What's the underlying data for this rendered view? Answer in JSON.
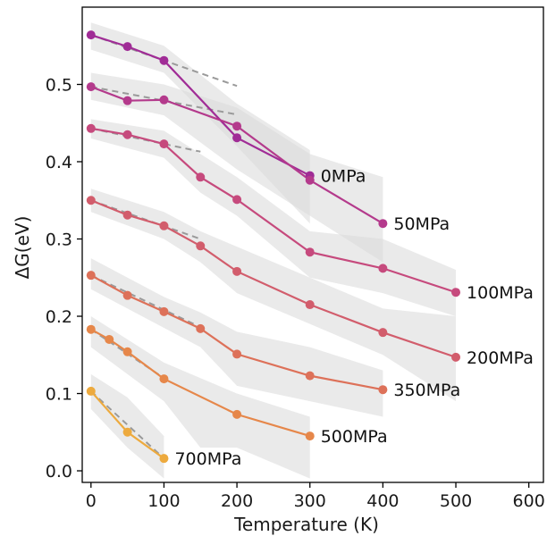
{
  "chart_data": {
    "type": "line",
    "xlabel": "Temperature (K)",
    "ylabel": "ΔG(eV)",
    "xlim": [
      -12,
      620
    ],
    "ylim": [
      -0.015,
      0.6
    ],
    "xticks": [
      0,
      100,
      200,
      300,
      400,
      500,
      600
    ],
    "yticks": [
      0.0,
      0.1,
      0.2,
      0.3,
      0.4,
      0.5
    ],
    "xtick_labels": [
      "0",
      "100",
      "200",
      "300",
      "400",
      "500",
      "600"
    ],
    "ytick_labels": [
      "0.0",
      "0.1",
      "0.2",
      "0.3",
      "0.4",
      "0.5"
    ],
    "grid": false,
    "legend": "none",
    "series": [
      {
        "name": "0MPa",
        "color": "#a02c96",
        "x": [
          0,
          50,
          100,
          200,
          300
        ],
        "y": [
          0.564,
          0.549,
          0.531,
          0.431,
          0.382
        ],
        "band": [
          [
            0,
            0.545,
            0.58
          ],
          [
            100,
            0.515,
            0.55
          ],
          [
            200,
            0.42,
            0.475
          ],
          [
            300,
            0.32,
            0.415
          ]
        ],
        "fit": [
          [
            0,
            0.564
          ],
          [
            200,
            0.498
          ]
        ]
      },
      {
        "name": "50MPa",
        "color": "#b43a8c",
        "x": [
          0,
          50,
          100,
          200,
          300,
          400
        ],
        "y": [
          0.497,
          0.479,
          0.48,
          0.446,
          0.376,
          0.32
        ],
        "band": [
          [
            0,
            0.48,
            0.515
          ],
          [
            100,
            0.46,
            0.5
          ],
          [
            200,
            0.39,
            0.47
          ],
          [
            300,
            0.33,
            0.41
          ],
          [
            400,
            0.27,
            0.38
          ]
        ],
        "fit": [
          [
            0,
            0.497
          ],
          [
            200,
            0.461
          ]
        ]
      },
      {
        "name": "100MPa",
        "color": "#c64a7d",
        "x": [
          0,
          50,
          100,
          150,
          200,
          300,
          400,
          500
        ],
        "y": [
          0.443,
          0.435,
          0.423,
          0.38,
          0.351,
          0.283,
          0.262,
          0.231
        ],
        "band": [
          [
            0,
            0.43,
            0.455
          ],
          [
            100,
            0.405,
            0.44
          ],
          [
            150,
            0.36,
            0.41
          ],
          [
            200,
            0.33,
            0.38
          ],
          [
            300,
            0.25,
            0.31
          ],
          [
            400,
            0.23,
            0.3
          ],
          [
            500,
            0.2,
            0.26
          ]
        ],
        "fit": [
          [
            0,
            0.443
          ],
          [
            150,
            0.413
          ]
        ]
      },
      {
        "name": "200MPa",
        "color": "#d25d6c",
        "x": [
          0,
          50,
          100,
          150,
          200,
          300,
          400,
          500
        ],
        "y": [
          0.35,
          0.331,
          0.317,
          0.291,
          0.258,
          0.215,
          0.179,
          0.147
        ],
        "band": [
          [
            0,
            0.335,
            0.365
          ],
          [
            100,
            0.3,
            0.335
          ],
          [
            150,
            0.27,
            0.31
          ],
          [
            200,
            0.23,
            0.29
          ],
          [
            300,
            0.19,
            0.25
          ],
          [
            400,
            0.15,
            0.21
          ],
          [
            500,
            0.09,
            0.2
          ]
        ],
        "fit": [
          [
            0,
            0.35
          ],
          [
            150,
            0.3
          ]
        ]
      },
      {
        "name": "350MPa",
        "color": "#dd7159",
        "x": [
          0,
          50,
          100,
          150,
          200,
          300,
          400
        ],
        "y": [
          0.253,
          0.227,
          0.206,
          0.184,
          0.151,
          0.123,
          0.105
        ],
        "band": [
          [
            0,
            0.235,
            0.275
          ],
          [
            100,
            0.185,
            0.225
          ],
          [
            150,
            0.16,
            0.205
          ],
          [
            200,
            0.11,
            0.18
          ],
          [
            300,
            0.09,
            0.16
          ],
          [
            400,
            0.07,
            0.13
          ]
        ],
        "fit": [
          [
            0,
            0.253
          ],
          [
            150,
            0.186
          ]
        ]
      },
      {
        "name": "500MPa",
        "color": "#e6874a",
        "x": [
          0,
          25,
          50,
          100,
          200,
          300
        ],
        "y": [
          0.183,
          0.17,
          0.154,
          0.119,
          0.073,
          0.045
        ],
        "band": [
          [
            0,
            0.16,
            0.2
          ],
          [
            100,
            0.09,
            0.14
          ],
          [
            150,
            0.03,
            0.12
          ],
          [
            200,
            0.03,
            0.1
          ],
          [
            300,
            -0.01,
            0.07
          ]
        ],
        "fit": [
          [
            0,
            0.183
          ],
          [
            100,
            0.12
          ]
        ]
      },
      {
        "name": "700MPa",
        "color": "#edaa3e",
        "x": [
          0,
          50,
          100
        ],
        "y": [
          0.103,
          0.05,
          0.016
        ],
        "band": [
          [
            0,
            0.08,
            0.125
          ],
          [
            50,
            0.03,
            0.095
          ],
          [
            100,
            -0.01,
            0.045
          ]
        ],
        "fit": [
          [
            0,
            0.103
          ],
          [
            100,
            0.016
          ]
        ]
      }
    ]
  }
}
